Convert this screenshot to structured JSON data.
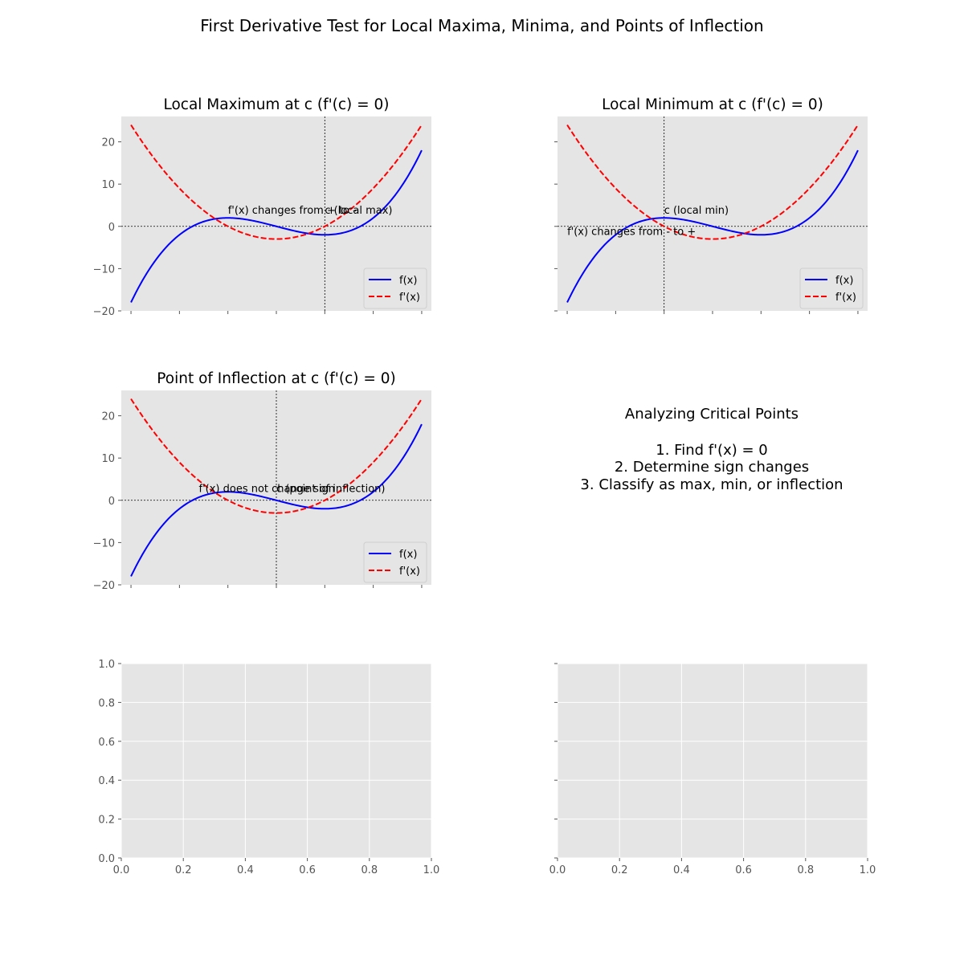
{
  "figure": {
    "title": "First Derivative Test for Local Maxima, Minima, and Points of Inflection"
  },
  "colors": {
    "f": "#0000ff",
    "fprime": "#ff0000",
    "axes_bg": "#e5e5e5",
    "grid": "#ffffff",
    "tick_label": "#555555",
    "text": "#000000"
  },
  "info_panel": {
    "heading": "Analyzing Critical Points",
    "steps": [
      "1. Find f'(x) = 0",
      "2. Determine sign changes",
      "3. Classify as max, min, or inflection"
    ]
  },
  "chart_data": [
    {
      "type": "line",
      "title": "Local Maximum at c (f'(c) = 0)",
      "xlim": [
        -3.2,
        3.2
      ],
      "ylim": [
        -20,
        26
      ],
      "x_ticks": [
        -3,
        -2,
        -1,
        0,
        1,
        2,
        3
      ],
      "x_tick_labels_shown": false,
      "y_ticks": [
        -20,
        -10,
        0,
        10,
        20
      ],
      "y_tick_labels_shown": true,
      "grid": false,
      "series": [
        {
          "name": "f(x)",
          "expression": "x^3 - 3x",
          "style": "solid",
          "color": "#0000ff",
          "x_range": [
            -3,
            3
          ]
        },
        {
          "name": "f'(x)",
          "expression": "3x^2 - 3",
          "style": "dashed",
          "color": "#ff0000",
          "x_range": [
            -3,
            3
          ]
        }
      ],
      "sample_points": {
        "x": [
          -3,
          -2,
          -1,
          0,
          1,
          2,
          3
        ],
        "f": [
          -18,
          -2,
          2,
          0,
          -2,
          2,
          18
        ],
        "fprime": [
          24,
          9,
          0,
          -3,
          0,
          9,
          24
        ]
      },
      "reference_lines": {
        "vertical_x": 1,
        "horizontal_y": 0
      },
      "annotations": [
        {
          "text": "f'(x) changes from + to -",
          "x": -1,
          "y": 3
        },
        {
          "text": "c (local max)",
          "x": 1,
          "y": 3
        }
      ],
      "legend": {
        "position": "lower right",
        "entries": [
          "f(x)",
          "f'(x)"
        ]
      }
    },
    {
      "type": "line",
      "title": "Local Minimum at c (f'(c) = 0)",
      "xlim": [
        -3.2,
        3.2
      ],
      "ylim": [
        -20,
        26
      ],
      "x_ticks": [
        -3,
        -2,
        -1,
        0,
        1,
        2,
        3
      ],
      "x_tick_labels_shown": false,
      "y_ticks": [
        -20,
        -10,
        0,
        10,
        20
      ],
      "y_tick_labels_shown": false,
      "grid": false,
      "series": [
        {
          "name": "f(x)",
          "expression": "x^3 - 3x",
          "style": "solid",
          "color": "#0000ff",
          "x_range": [
            -3,
            3
          ]
        },
        {
          "name": "f'(x)",
          "expression": "3x^2 - 3",
          "style": "dashed",
          "color": "#ff0000",
          "x_range": [
            -3,
            3
          ]
        }
      ],
      "sample_points": {
        "x": [
          -3,
          -2,
          -1,
          0,
          1,
          2,
          3
        ],
        "f": [
          -18,
          -2,
          2,
          0,
          -2,
          2,
          18
        ],
        "fprime": [
          24,
          9,
          0,
          -3,
          0,
          9,
          24
        ]
      },
      "reference_lines": {
        "vertical_x": -1,
        "horizontal_y": 0
      },
      "annotations": [
        {
          "text": "c (local min)",
          "x": -1,
          "y": 3
        },
        {
          "text": "f'(x) changes from - to +",
          "x": -3,
          "y": -2
        }
      ],
      "legend": {
        "position": "lower right",
        "entries": [
          "f(x)",
          "f'(x)"
        ]
      }
    },
    {
      "type": "line",
      "title": "Point of Inflection at c (f'(c) = 0)",
      "xlim": [
        -3.2,
        3.2
      ],
      "ylim": [
        -20,
        26
      ],
      "x_ticks": [
        -3,
        -2,
        -1,
        0,
        1,
        2,
        3
      ],
      "x_tick_labels_shown": false,
      "y_ticks": [
        -20,
        -10,
        0,
        10,
        20
      ],
      "y_tick_labels_shown": true,
      "grid": false,
      "series": [
        {
          "name": "f(x)",
          "expression": "x^3 - 3x",
          "style": "solid",
          "color": "#0000ff",
          "x_range": [
            -3,
            3
          ]
        },
        {
          "name": "f'(x)",
          "expression": "3x^2 - 3",
          "style": "dashed",
          "color": "#ff0000",
          "x_range": [
            -3,
            3
          ]
        }
      ],
      "sample_points": {
        "x": [
          -3,
          -2,
          -1,
          0,
          1,
          2,
          3
        ],
        "f": [
          -18,
          -2,
          2,
          0,
          -2,
          2,
          18
        ],
        "fprime": [
          24,
          9,
          0,
          -3,
          0,
          9,
          24
        ]
      },
      "reference_lines": {
        "vertical_x": 0,
        "horizontal_y": 0
      },
      "annotations": [
        {
          "text": "f'(x) does not change sign",
          "x": -1.6,
          "y": 2
        },
        {
          "text": "c (point of inflection)",
          "x": 0,
          "y": 2
        }
      ],
      "legend": {
        "position": "lower right",
        "entries": [
          "f(x)",
          "f'(x)"
        ]
      }
    },
    {
      "type": "line",
      "title": "",
      "empty": true,
      "xlim": [
        0,
        1
      ],
      "ylim": [
        0,
        1
      ],
      "x_ticks": [
        0,
        0.2,
        0.4,
        0.6,
        0.8,
        1
      ],
      "x_tick_labels": [
        "0.0",
        "0.2",
        "0.4",
        "0.6",
        "0.8",
        "1.0"
      ],
      "x_tick_labels_shown": true,
      "y_ticks": [
        0,
        0.2,
        0.4,
        0.6,
        0.8,
        1
      ],
      "y_tick_labels": [
        "0.0",
        "0.2",
        "0.4",
        "0.6",
        "0.8",
        "1.0"
      ],
      "y_tick_labels_shown": true,
      "grid": true,
      "series": []
    },
    {
      "type": "line",
      "title": "",
      "empty": true,
      "xlim": [
        0,
        1
      ],
      "ylim": [
        0,
        1
      ],
      "x_ticks": [
        0,
        0.2,
        0.4,
        0.6,
        0.8,
        1
      ],
      "x_tick_labels": [
        "0.0",
        "0.2",
        "0.4",
        "0.6",
        "0.8",
        "1.0"
      ],
      "x_tick_labels_shown": true,
      "y_ticks": [
        0,
        0.2,
        0.4,
        0.6,
        0.8,
        1
      ],
      "y_tick_labels": [
        "0.0",
        "0.2",
        "0.4",
        "0.6",
        "0.8",
        "1.0"
      ],
      "y_tick_labels_shown": false,
      "grid": true,
      "series": []
    }
  ]
}
